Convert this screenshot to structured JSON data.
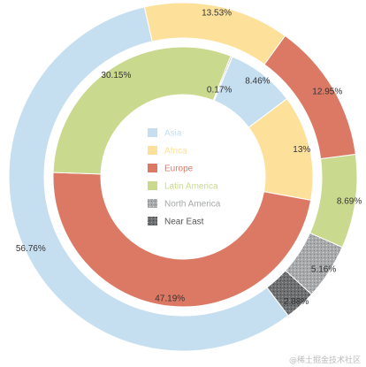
{
  "chart_data": {
    "type": "pie",
    "style": "nested-donut",
    "rings": [
      {
        "ring": "outer",
        "slices": [
          {
            "category": "Asia",
            "value": 56.76,
            "label": "56.76%"
          },
          {
            "category": "Africa",
            "value": 13.53,
            "label": "13.53%"
          },
          {
            "category": "Europe",
            "value": 12.95,
            "label": "12.95%"
          },
          {
            "category": "Latin America",
            "value": 8.69,
            "label": "8.69%"
          },
          {
            "category": "North America",
            "value": 5.16,
            "label": "5.16%"
          },
          {
            "category": "Near East",
            "value": 2.88,
            "label": "2.88%"
          }
        ]
      },
      {
        "ring": "inner",
        "slices": [
          {
            "category": "Asia",
            "value": 8.46,
            "label": "8.46%"
          },
          {
            "category": "Africa",
            "value": 13,
            "label": "13%"
          },
          {
            "category": "Europe",
            "value": 47.19,
            "label": "47.19%"
          },
          {
            "category": "Latin America",
            "value": 30.15,
            "label": "30.15%"
          },
          {
            "category": "North America",
            "value": 0.17,
            "label": "0.17%"
          },
          {
            "category": "Near East",
            "value": 0.03,
            "label": ""
          }
        ]
      }
    ],
    "legend": {
      "placement": "center",
      "entries": [
        {
          "name": "Asia",
          "color": "#c6dff0"
        },
        {
          "name": "Africa",
          "color": "#fde19b"
        },
        {
          "name": "Europe",
          "color": "#db7965"
        },
        {
          "name": "Latin America",
          "color": "#c9d98e"
        },
        {
          "name": "North America",
          "color": "#a7a9aa"
        },
        {
          "name": "Near East",
          "color": "#6f7072"
        }
      ]
    }
  },
  "watermark": "@稀土掘金技术社区"
}
